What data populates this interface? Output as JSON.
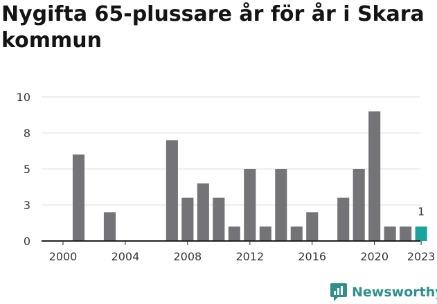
{
  "title": "Nygifta 65-plussare år för år i Skara kommun",
  "brand": {
    "name": "Newsworthy",
    "icon": "newsworthy-chart-bubble-icon",
    "color": "#2e8f8c"
  },
  "colors": {
    "bar": "#737378",
    "highlight": "#18a39b",
    "axis": "#222222",
    "grid": "#dddddd",
    "text": "#333333"
  },
  "chart_data": {
    "type": "bar",
    "title": "Nygifta 65-plussare år för år i Skara kommun",
    "x": [
      2000,
      2001,
      2002,
      2003,
      2004,
      2005,
      2006,
      2007,
      2008,
      2009,
      2010,
      2011,
      2012,
      2013,
      2014,
      2015,
      2016,
      2017,
      2018,
      2019,
      2020,
      2021,
      2022,
      2023
    ],
    "values": [
      0,
      6,
      0,
      2,
      0,
      0,
      0,
      7,
      3,
      4,
      3,
      1,
      5,
      1,
      5,
      1,
      2,
      0,
      3,
      5,
      9,
      1,
      1,
      1
    ],
    "highlight": {
      "x": 2023,
      "label": "1"
    },
    "yticks": [
      0,
      3,
      5,
      8,
      10
    ],
    "ytick_positions": [
      0,
      2.5,
      5,
      7.5,
      10
    ],
    "xticks": [
      2000,
      2004,
      2008,
      2012,
      2016,
      2020,
      2023
    ],
    "ylim": [
      0,
      10
    ],
    "grid": "horizontal",
    "xlabel": "",
    "ylabel": ""
  }
}
